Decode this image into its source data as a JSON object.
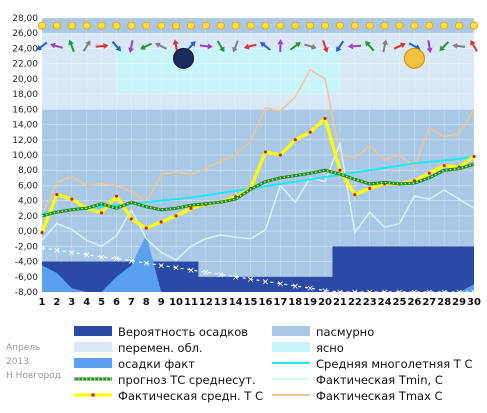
{
  "caption": {
    "month": "Апрель",
    "year": "2013",
    "city": "Н.Новгород"
  },
  "chart_data": {
    "type": "line",
    "x": [
      1,
      2,
      3,
      4,
      5,
      6,
      7,
      8,
      9,
      10,
      11,
      12,
      13,
      14,
      15,
      16,
      17,
      18,
      19,
      20,
      21,
      22,
      23,
      24,
      25,
      26,
      27,
      28,
      29,
      30
    ],
    "ylim": [
      -8,
      28
    ],
    "yticks": [
      "28,00",
      "26,00",
      "24,00",
      "22,00",
      "20,00",
      "18,00",
      "16,00",
      "14,00",
      "12,00",
      "10,00",
      "8,00",
      "6,00",
      "4,00",
      "2,00",
      "0,00",
      "-2,00",
      "-4,00",
      "-6,00",
      "-8,00"
    ],
    "xticks": [
      "1",
      "2",
      "3",
      "4",
      "5",
      "6",
      "7",
      "8",
      "9",
      "10",
      "11",
      "12",
      "13",
      "14",
      "15",
      "16",
      "17",
      "18",
      "19",
      "20",
      "21",
      "22",
      "23",
      "24",
      "25",
      "26",
      "27",
      "28",
      "29",
      "30"
    ],
    "moon_days": [
      {
        "day": 10.5,
        "phase": "new"
      },
      {
        "day": 26,
        "phase": "full"
      }
    ],
    "colors": {
      "precip_prob": "#2a4aa6",
      "overcast": "#a9c8e6",
      "partly_cloudy": "#d8e8f6",
      "clear": "#c8f4fb",
      "precip_fact": "#5aa0ee",
      "avg_norm": "#22e6f2",
      "forecast": "#1f8a1f",
      "tmin": "#d6f4fb",
      "tavg": "#ffff00",
      "tmax": "#f5c392",
      "plot_bg": "#a9c8e6"
    },
    "series": [
      {
        "name": "Вероятность осадков",
        "kind": "area_from_bottom",
        "values": [
          -4,
          -4,
          -4,
          -4,
          -4,
          -4,
          -4,
          -4,
          -4,
          -4,
          -4,
          -6,
          -6,
          -6,
          -6,
          -6,
          -6,
          -6,
          -6,
          -6,
          -2,
          -2,
          -2,
          -2,
          -2,
          -2,
          -2,
          -2,
          -2,
          -2
        ]
      },
      {
        "name": "осадки факт",
        "kind": "area_from_bottom",
        "values": [
          -4.5,
          -5.5,
          -7.5,
          -8,
          -8,
          -6,
          -4.5,
          -0.5,
          -8,
          -8,
          -8,
          -8,
          -8,
          -8,
          -8,
          -8,
          -8,
          -8,
          -8,
          -8,
          -8,
          -8,
          -8,
          -8,
          -8,
          -8,
          -8,
          -8,
          -8,
          -7
        ]
      },
      {
        "name": "Средняя многолетняя Т С",
        "kind": "line",
        "values": [
          2.4,
          2.6,
          2.8,
          3.0,
          3.2,
          3.4,
          3.6,
          3.8,
          4.0,
          4.2,
          4.4,
          4.7,
          5.0,
          5.3,
          5.6,
          5.9,
          6.2,
          6.5,
          6.8,
          7.1,
          7.4,
          7.7,
          8.0,
          8.3,
          8.6,
          8.9,
          9.1,
          9.3,
          9.5,
          9.7
        ]
      },
      {
        "name": "прогноз ТС среднесут.",
        "kind": "line",
        "values": [
          2.0,
          2.5,
          2.8,
          3.0,
          3.6,
          3.0,
          3.8,
          3.2,
          2.8,
          3.0,
          3.4,
          3.6,
          3.8,
          4.2,
          5.5,
          6.5,
          7.0,
          7.3,
          7.6,
          8.0,
          7.5,
          6.8,
          6.2,
          6.4,
          6.2,
          6.3,
          7.0,
          8.0,
          8.2,
          8.8
        ]
      },
      {
        "name": "Фактическая Tmin, C",
        "kind": "line",
        "values": [
          -1.2,
          1.0,
          0.2,
          -1.2,
          -2.0,
          -0.6,
          2.8,
          -1.0,
          -2.8,
          -3.8,
          -2.0,
          -1.0,
          -0.5,
          -0.8,
          -1.0,
          0.2,
          6.0,
          3.8,
          7.0,
          6.5,
          11.5,
          -0.2,
          2.5,
          0.5,
          1.0,
          4.6,
          4.2,
          5.4,
          4.2,
          3.0
        ]
      },
      {
        "name": "Фактическая средн. Т С",
        "kind": "line",
        "values": [
          -0.2,
          4.8,
          4.2,
          3.0,
          2.4,
          4.6,
          1.6,
          0.4,
          1.2,
          2.0,
          3.0,
          3.5,
          3.8,
          4.5,
          5.6,
          10.4,
          10.0,
          12.0,
          13.0,
          14.8,
          8.0,
          4.8,
          5.6,
          6.2,
          6.2,
          6.6,
          7.6,
          8.6,
          8.4,
          9.8
        ]
      },
      {
        "name": "Фактическая Tmax C",
        "kind": "line",
        "values": [
          2.0,
          6.4,
          7.2,
          6.0,
          6.2,
          6.0,
          5.2,
          3.8,
          7.4,
          7.8,
          7.4,
          8.2,
          9.2,
          10.0,
          11.8,
          16.2,
          15.8,
          17.6,
          21.2,
          20.0,
          10.0,
          9.6,
          11.2,
          9.4,
          10.0,
          8.4,
          13.6,
          12.4,
          12.8,
          16.0
        ]
      },
      {
        "name": "Tavg2",
        "kind": "dashed",
        "values": [
          -2.2,
          -2.5,
          -2.8,
          -3.1,
          -3.4,
          -3.6,
          -3.9,
          -4.2,
          -4.5,
          -4.8,
          -5.1,
          -5.4,
          -5.7,
          -6.0,
          -6.3,
          -6.6,
          -6.9,
          -7.2,
          -7.5,
          -7.8,
          -8.0,
          -8.0,
          -8.0,
          -8.0,
          -8.0,
          -8.0,
          -8.0,
          -8.0,
          -8.0,
          -8.0
        ]
      }
    ],
    "legend": [
      {
        "label": "Вероятность осадков",
        "key": "precip_prob",
        "symbol": "box"
      },
      {
        "label": "пасмурно",
        "key": "overcast",
        "symbol": "box"
      },
      {
        "label": "перемен. обл.",
        "key": "partly_cloudy",
        "symbol": "box"
      },
      {
        "label": "ясно",
        "key": "clear",
        "symbol": "box"
      },
      {
        "label": "осадки факт",
        "key": "precip_fact",
        "symbol": "box"
      },
      {
        "label": "Средняя многолетняя Т С",
        "key": "avg_norm",
        "symbol": "line"
      },
      {
        "label": "прогноз ТС среднесут.",
        "key": "forecast",
        "symbol": "dotted"
      },
      {
        "label": "Фактическая Tmin, C",
        "key": "tmin",
        "symbol": "line"
      },
      {
        "label": "Фактическая средн. Т С",
        "key": "tavg",
        "symbol": "thick"
      },
      {
        "label": "Фактическая Tmax C",
        "key": "tmax",
        "symbol": "line"
      }
    ]
  }
}
